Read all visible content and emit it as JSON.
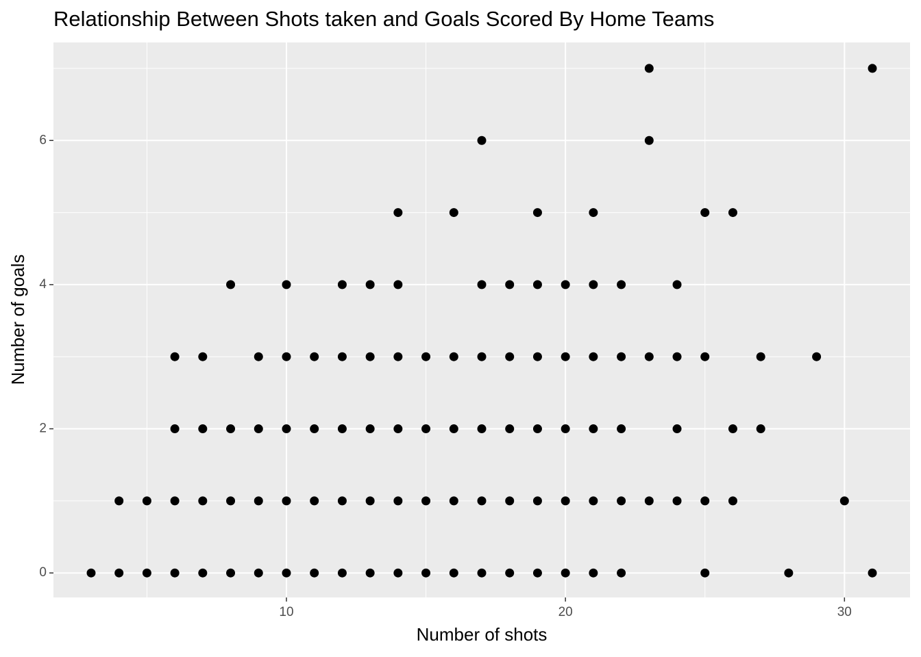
{
  "chart_data": {
    "type": "scatter",
    "title": "Relationship Between Shots taken and Goals Scored By Home Teams",
    "x_label": "Number of shots",
    "y_label": "Number of goals",
    "xlim": [
      1.65,
      32.35
    ],
    "ylim": [
      -0.34,
      7.36
    ],
    "xticks": [
      10,
      20,
      30
    ],
    "yticks": [
      0,
      2,
      4,
      6
    ],
    "minor_xticks": [
      5,
      15,
      25
    ],
    "minor_yticks": [
      1,
      3,
      5,
      7
    ],
    "grid": true,
    "color": "#000000",
    "x": [
      23,
      31,
      17,
      23,
      14,
      16,
      19,
      21,
      25,
      26,
      8,
      10,
      12,
      13,
      14,
      17,
      18,
      19,
      20,
      21,
      22,
      24,
      6,
      7,
      9,
      10,
      11,
      12,
      13,
      14,
      15,
      16,
      17,
      18,
      19,
      20,
      21,
      22,
      23,
      24,
      25,
      27,
      29,
      6,
      7,
      8,
      9,
      10,
      11,
      12,
      13,
      14,
      15,
      16,
      17,
      18,
      19,
      20,
      21,
      22,
      24,
      26,
      27,
      4,
      5,
      6,
      7,
      8,
      9,
      10,
      11,
      12,
      13,
      14,
      15,
      16,
      17,
      18,
      19,
      20,
      21,
      22,
      23,
      24,
      25,
      26,
      30,
      3,
      4,
      5,
      6,
      7,
      8,
      9,
      10,
      11,
      12,
      13,
      14,
      15,
      16,
      17,
      18,
      19,
      20,
      21,
      22,
      25,
      28,
      31
    ],
    "y": [
      7,
      7,
      6,
      6,
      5,
      5,
      5,
      5,
      5,
      5,
      4,
      4,
      4,
      4,
      4,
      4,
      4,
      4,
      4,
      4,
      4,
      4,
      3,
      3,
      3,
      3,
      3,
      3,
      3,
      3,
      3,
      3,
      3,
      3,
      3,
      3,
      3,
      3,
      3,
      3,
      3,
      3,
      3,
      2,
      2,
      2,
      2,
      2,
      2,
      2,
      2,
      2,
      2,
      2,
      2,
      2,
      2,
      2,
      2,
      2,
      2,
      2,
      2,
      1,
      1,
      1,
      1,
      1,
      1,
      1,
      1,
      1,
      1,
      1,
      1,
      1,
      1,
      1,
      1,
      1,
      1,
      1,
      1,
      1,
      1,
      1,
      1,
      0,
      0,
      0,
      0,
      0,
      0,
      0,
      0,
      0,
      0,
      0,
      0,
      0,
      0,
      0,
      0,
      0,
      0,
      0,
      0,
      0,
      0,
      0
    ]
  }
}
